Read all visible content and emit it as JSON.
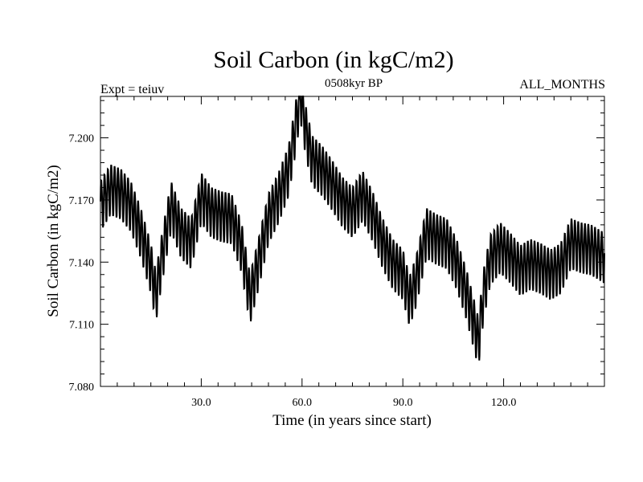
{
  "chart_data": {
    "type": "line",
    "title": "Soil Carbon (in kgC/m2)",
    "subtitle": "0508kyr BP",
    "left_annotation": "Expt = teiuv",
    "right_annotation": "ALL_MONTHS",
    "xlabel": "Time (in years since start)",
    "ylabel": "Soil Carbon (in kgC/m2)",
    "xlim": [
      0,
      150
    ],
    "ylim": [
      7.08,
      7.22
    ],
    "x_ticks": [
      30,
      60,
      90,
      120
    ],
    "x_tick_labels": [
      "30.0",
      "60.0",
      "90.0",
      "120.0"
    ],
    "y_ticks": [
      7.08,
      7.11,
      7.14,
      7.17,
      7.2
    ],
    "y_tick_labels": [
      "7.080",
      "7.110",
      "7.140",
      "7.170",
      "7.200"
    ],
    "grid": false,
    "seasonal_amplitude": 0.012,
    "series": [
      {
        "x": [
          0,
          3,
          6,
          9,
          12,
          15,
          16.5,
          18,
          21,
          24,
          27,
          30,
          33,
          36,
          39,
          42,
          44.5,
          47,
          50,
          53,
          56,
          58,
          59.5,
          61,
          63,
          66,
          69,
          72,
          75,
          78,
          81,
          84,
          87,
          90,
          92,
          94,
          97,
          100,
          103,
          106,
          109,
          111,
          112.5,
          114,
          116,
          119,
          122,
          125,
          128,
          131,
          134,
          137,
          140,
          143,
          146,
          150
        ],
        "y": [
          7.168,
          7.176,
          7.174,
          7.168,
          7.155,
          7.138,
          7.124,
          7.14,
          7.168,
          7.155,
          7.15,
          7.172,
          7.165,
          7.163,
          7.162,
          7.148,
          7.123,
          7.14,
          7.162,
          7.172,
          7.185,
          7.205,
          7.222,
          7.205,
          7.19,
          7.185,
          7.178,
          7.17,
          7.165,
          7.173,
          7.163,
          7.15,
          7.14,
          7.135,
          7.122,
          7.132,
          7.155,
          7.152,
          7.15,
          7.14,
          7.125,
          7.112,
          7.102,
          7.125,
          7.142,
          7.148,
          7.143,
          7.137,
          7.14,
          7.138,
          7.135,
          7.138,
          7.15,
          7.148,
          7.147,
          7.143
        ]
      }
    ]
  }
}
